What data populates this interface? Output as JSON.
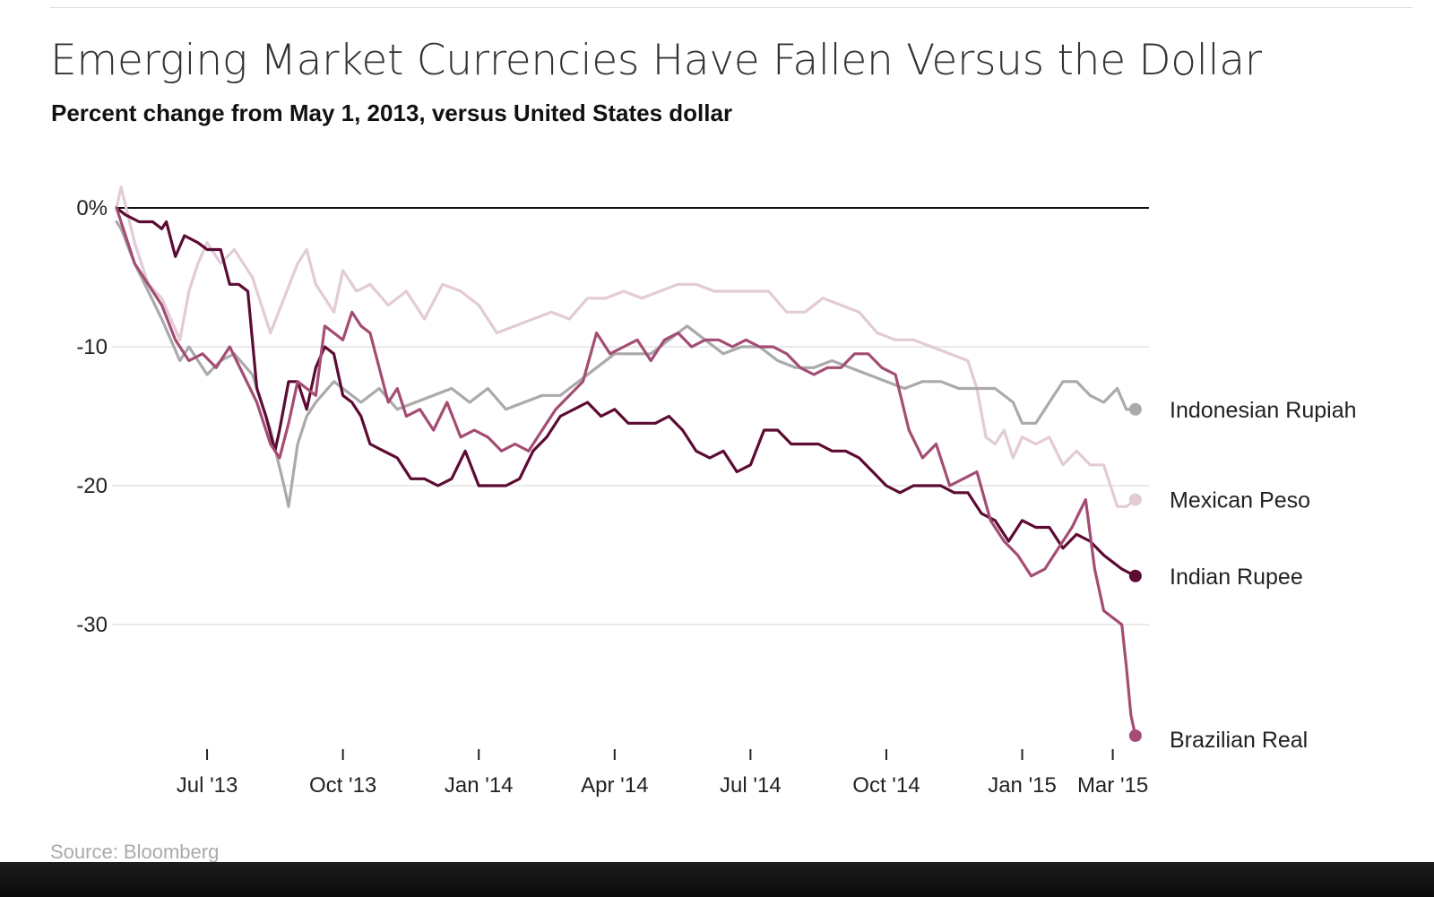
{
  "title": "Emerging Market Currencies Have Fallen Versus the Dollar",
  "subtitle": "Percent change from May 1, 2013, versus United States dollar",
  "source": "Source: Bloomberg",
  "colors": {
    "indonesian_rupiah": "#aaaaaa",
    "mexican_peso": "#e2cbd6",
    "indian_rupee": "#5c0b33",
    "brazilian_real": "#a44d74",
    "zero_line": "#111111",
    "grid": "#e4e4e4"
  },
  "chart_data": {
    "type": "line",
    "title": "Emerging Market Currencies Have Fallen Versus the Dollar",
    "subtitle": "Percent change from May 1, 2013, versus United States dollar",
    "xlabel": "",
    "ylabel": "",
    "ylim": [
      -38,
      0
    ],
    "yticks": [
      {
        "value": 0,
        "label": "0%"
      },
      {
        "value": -10,
        "label": "-10"
      },
      {
        "value": -20,
        "label": "-20"
      },
      {
        "value": -30,
        "label": "-30"
      }
    ],
    "xlim_months": [
      0,
      22.8
    ],
    "xticks": [
      {
        "month": 2,
        "label": "Jul '13"
      },
      {
        "month": 5,
        "label": "Oct '13"
      },
      {
        "month": 8,
        "label": "Jan '14"
      },
      {
        "month": 11,
        "label": "Apr '14"
      },
      {
        "month": 14,
        "label": "Jul '14"
      },
      {
        "month": 17,
        "label": "Oct '14"
      },
      {
        "month": 20,
        "label": "Jan '15"
      },
      {
        "month": 22,
        "label": "Mar '15"
      }
    ],
    "x_unit": "months since May 1, 2013",
    "series": [
      {
        "name": "Mexican Peso",
        "key": "mexican_peso",
        "x": [
          0,
          0.1,
          0.4,
          0.7,
          1.0,
          1.4,
          1.6,
          1.8,
          2.0,
          2.3,
          2.6,
          3.0,
          3.4,
          3.7,
          4.0,
          4.2,
          4.4,
          4.8,
          5.0,
          5.3,
          5.6,
          6.0,
          6.4,
          6.8,
          7.2,
          7.6,
          8.0,
          8.4,
          8.8,
          9.2,
          9.6,
          10.0,
          10.4,
          10.8,
          11.2,
          11.6,
          12.0,
          12.4,
          12.8,
          13.2,
          13.6,
          14.0,
          14.4,
          14.8,
          15.2,
          15.6,
          16.0,
          16.4,
          16.8,
          17.2,
          17.6,
          18.0,
          18.4,
          18.8,
          19.0,
          19.2,
          19.4,
          19.6,
          19.8,
          20.0,
          20.3,
          20.6,
          20.9,
          21.2,
          21.5,
          21.8,
          22.1,
          22.3,
          22.5
        ],
        "y": [
          0,
          1.5,
          -2.5,
          -5.5,
          -6.5,
          -9.5,
          -6,
          -4,
          -2.5,
          -4,
          -3,
          -5,
          -9,
          -6.5,
          -4,
          -3,
          -5.5,
          -7.5,
          -4.5,
          -6,
          -5.5,
          -7,
          -6,
          -8,
          -5.5,
          -6,
          -7,
          -9,
          -8.5,
          -8,
          -7.5,
          -8,
          -6.5,
          -6.5,
          -6,
          -6.5,
          -6,
          -5.5,
          -5.5,
          -6,
          -6,
          -6,
          -6,
          -7.5,
          -7.5,
          -6.5,
          -7,
          -7.5,
          -9,
          -9.5,
          -9.5,
          -10,
          -10.5,
          -11,
          -13,
          -16.5,
          -17,
          -16,
          -18,
          -16.5,
          -17,
          -16.5,
          -18.5,
          -17.5,
          -18.5,
          -18.5,
          -21.5,
          -21.5,
          -21
        ],
        "end_label": "Mexican Peso"
      },
      {
        "name": "Indonesian Rupiah",
        "key": "indonesian_rupiah",
        "x": [
          0,
          0.1,
          0.4,
          0.7,
          1.0,
          1.4,
          1.6,
          1.8,
          2.0,
          2.3,
          2.6,
          3.0,
          3.4,
          3.7,
          3.8,
          4.0,
          4.2,
          4.4,
          4.8,
          5.0,
          5.4,
          5.8,
          6.2,
          6.6,
          7.0,
          7.4,
          7.8,
          8.2,
          8.6,
          9.0,
          9.4,
          9.8,
          10.2,
          10.6,
          11.0,
          11.4,
          11.8,
          12.2,
          12.6,
          13.0,
          13.4,
          13.8,
          14.2,
          14.6,
          15.0,
          15.4,
          15.8,
          16.2,
          16.6,
          17.0,
          17.4,
          17.8,
          18.2,
          18.6,
          19.0,
          19.4,
          19.8,
          20.0,
          20.3,
          20.6,
          20.9,
          21.2,
          21.5,
          21.8,
          22.1,
          22.3,
          22.5
        ],
        "y": [
          -1,
          -1.5,
          -4,
          -6,
          -8,
          -11,
          -10,
          -11,
          -12,
          -11,
          -10.5,
          -12,
          -16,
          -20,
          -21.5,
          -17,
          -15,
          -14,
          -12.5,
          -13,
          -14,
          -13,
          -14.5,
          -14,
          -13.5,
          -13,
          -14,
          -13,
          -14.5,
          -14,
          -13.5,
          -13.5,
          -12.5,
          -11.5,
          -10.5,
          -10.5,
          -10.5,
          -9.5,
          -8.5,
          -9.5,
          -10.5,
          -10,
          -10,
          -11,
          -11.5,
          -11.5,
          -11,
          -11.5,
          -12,
          -12.5,
          -13,
          -12.5,
          -12.5,
          -13,
          -13,
          -13,
          -14,
          -15.5,
          -15.5,
          -14,
          -12.5,
          -12.5,
          -13.5,
          -14,
          -13,
          -14.5,
          -14.5
        ],
        "end_label": "Indonesian Rupiah"
      },
      {
        "name": "Indian Rupee",
        "key": "indian_rupee",
        "x": [
          0,
          0.2,
          0.5,
          0.8,
          1.0,
          1.1,
          1.3,
          1.5,
          1.8,
          2.0,
          2.3,
          2.5,
          2.7,
          2.9,
          3.1,
          3.3,
          3.5,
          3.6,
          3.8,
          4.0,
          4.2,
          4.4,
          4.6,
          4.8,
          5.0,
          5.2,
          5.4,
          5.6,
          5.9,
          6.2,
          6.5,
          6.8,
          7.1,
          7.4,
          7.7,
          8.0,
          8.3,
          8.6,
          8.9,
          9.2,
          9.5,
          9.8,
          10.1,
          10.4,
          10.7,
          11.0,
          11.3,
          11.6,
          11.9,
          12.2,
          12.5,
          12.8,
          13.1,
          13.4,
          13.7,
          14.0,
          14.3,
          14.6,
          14.9,
          15.2,
          15.5,
          15.8,
          16.1,
          16.4,
          16.7,
          17.0,
          17.3,
          17.6,
          17.9,
          18.2,
          18.5,
          18.8,
          19.1,
          19.4,
          19.7,
          20.0,
          20.3,
          20.6,
          20.9,
          21.2,
          21.5,
          21.8,
          22.0,
          22.2,
          22.5
        ],
        "y": [
          0,
          -0.5,
          -1,
          -1,
          -1.5,
          -1,
          -3.5,
          -2,
          -2.5,
          -3,
          -3,
          -5.5,
          -5.5,
          -6,
          -13,
          -15,
          -17.5,
          -16,
          -12.5,
          -12.5,
          -14.5,
          -11.5,
          -10,
          -10.5,
          -13.5,
          -14,
          -15,
          -17,
          -17.5,
          -18,
          -19.5,
          -19.5,
          -20,
          -19.5,
          -17.5,
          -20,
          -20,
          -20,
          -19.5,
          -17.5,
          -16.5,
          -15,
          -14.5,
          -14,
          -15,
          -14.5,
          -15.5,
          -15.5,
          -15.5,
          -15,
          -16,
          -17.5,
          -18,
          -17.5,
          -19,
          -18.5,
          -16,
          -16,
          -17,
          -17,
          -17,
          -17.5,
          -17.5,
          -18,
          -19,
          -20,
          -20.5,
          -20,
          -20,
          -20,
          -20.5,
          -20.5,
          -22,
          -22.5,
          -24,
          -22.5,
          -23,
          -23,
          -24.5,
          -23.5,
          -24,
          -25,
          -25.5,
          -26,
          -26.5
        ],
        "end_label": "Indian Rupee"
      },
      {
        "name": "Brazilian Real",
        "key": "brazilian_real",
        "x": [
          0,
          0.2,
          0.4,
          0.7,
          1.0,
          1.3,
          1.6,
          1.9,
          2.2,
          2.5,
          2.8,
          3.1,
          3.4,
          3.6,
          3.8,
          4.0,
          4.2,
          4.4,
          4.6,
          4.8,
          5.0,
          5.2,
          5.4,
          5.6,
          5.8,
          6.0,
          6.2,
          6.4,
          6.7,
          7.0,
          7.3,
          7.6,
          7.9,
          8.2,
          8.5,
          8.8,
          9.1,
          9.4,
          9.7,
          10.0,
          10.3,
          10.6,
          10.9,
          11.2,
          11.5,
          11.8,
          12.1,
          12.4,
          12.7,
          13.0,
          13.3,
          13.6,
          13.9,
          14.2,
          14.5,
          14.8,
          15.1,
          15.4,
          15.7,
          16.0,
          16.3,
          16.6,
          16.9,
          17.2,
          17.5,
          17.8,
          18.1,
          18.4,
          18.7,
          19.0,
          19.3,
          19.6,
          19.9,
          20.2,
          20.5,
          20.8,
          21.1,
          21.4,
          21.6,
          21.8,
          22.0,
          22.2,
          22.3,
          22.4,
          22.5
        ],
        "y": [
          0,
          -2,
          -4,
          -5.5,
          -7,
          -9.5,
          -11,
          -10.5,
          -11.5,
          -10,
          -12,
          -14,
          -17,
          -18,
          -15.5,
          -12.5,
          -13,
          -13.5,
          -8.5,
          -9,
          -9.5,
          -7.5,
          -8.5,
          -9,
          -11.5,
          -14,
          -13,
          -15,
          -14.5,
          -16,
          -14,
          -16.5,
          -16,
          -16.5,
          -17.5,
          -17,
          -17.5,
          -16,
          -14.5,
          -13.5,
          -12.5,
          -9,
          -10.5,
          -10,
          -9.5,
          -11,
          -9.5,
          -9,
          -10,
          -9.5,
          -9.5,
          -10,
          -9.5,
          -10,
          -10,
          -10.5,
          -11.5,
          -12,
          -11.5,
          -11.5,
          -10.5,
          -10.5,
          -11.5,
          -12,
          -16,
          -18,
          -17,
          -20,
          -19.5,
          -19,
          -22.5,
          -24,
          -25,
          -26.5,
          -26,
          -24.5,
          -23,
          -21,
          -26,
          -29,
          -29.5,
          -30,
          -33,
          -36.5,
          -38
        ],
        "end_label": "Brazilian Real"
      }
    ]
  },
  "taskbar": {
    "icons": [
      "dock-app-1",
      "dock-app-2",
      "dock-app-3"
    ]
  }
}
